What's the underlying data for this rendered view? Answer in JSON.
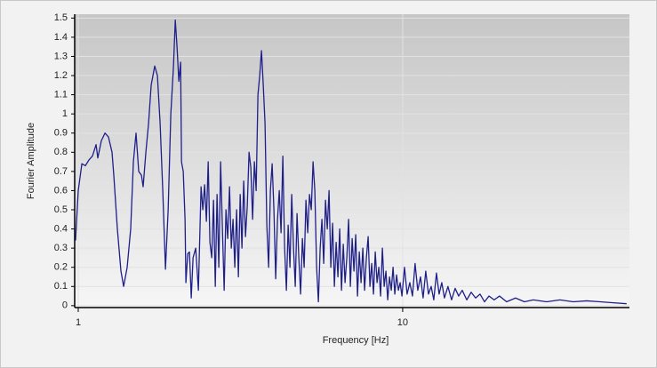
{
  "chart_data": {
    "type": "line",
    "xlabel": "Frequency [Hz]",
    "ylabel": "Fourier Amplitude",
    "color": "#1f1f8a",
    "xscale": "log",
    "grid": true,
    "xlim": [
      0.975,
      50
    ],
    "xticks": [
      1,
      10
    ],
    "ylim": [
      -0.01,
      1.52
    ],
    "yticks": [
      0,
      0.1,
      0.2,
      0.3,
      0.4,
      0.5,
      0.6,
      0.7,
      0.8,
      0.9,
      1,
      1.1,
      1.2,
      1.3,
      1.4,
      1.5
    ],
    "x": [
      0.981,
      1.0,
      1.026,
      1.052,
      1.079,
      1.106,
      1.135,
      1.149,
      1.178,
      1.209,
      1.239,
      1.271,
      1.287,
      1.32,
      1.354,
      1.38,
      1.415,
      1.451,
      1.479,
      1.507,
      1.536,
      1.566,
      1.585,
      1.616,
      1.647,
      1.678,
      1.721,
      1.754,
      1.788,
      1.822,
      1.857,
      1.893,
      1.929,
      1.966,
      1.991,
      2.016,
      2.042,
      2.068,
      2.081,
      2.107,
      2.134,
      2.147,
      2.175,
      2.202,
      2.23,
      2.259,
      2.302,
      2.346,
      2.391,
      2.421,
      2.452,
      2.483,
      2.515,
      2.546,
      2.579,
      2.612,
      2.645,
      2.678,
      2.712,
      2.747,
      2.782,
      2.817,
      2.853,
      2.889,
      2.926,
      2.963,
      3.0,
      3.038,
      3.077,
      3.116,
      3.156,
      3.196,
      3.236,
      3.277,
      3.319,
      3.361,
      3.404,
      3.447,
      3.491,
      3.535,
      3.58,
      3.625,
      3.671,
      3.718,
      3.765,
      3.813,
      3.862,
      3.911,
      3.96,
      4.01,
      4.061,
      4.113,
      4.165,
      4.218,
      4.272,
      4.326,
      4.381,
      4.436,
      4.493,
      4.55,
      4.608,
      4.666,
      4.725,
      4.785,
      4.846,
      4.908,
      4.97,
      5.033,
      5.097,
      5.162,
      5.227,
      5.294,
      5.361,
      5.429,
      5.498,
      5.568,
      5.638,
      5.71,
      5.782,
      5.856,
      5.93,
      6.005,
      6.082,
      6.159,
      6.237,
      6.316,
      6.396,
      6.478,
      6.56,
      6.643,
      6.728,
      6.813,
      6.899,
      6.987,
      7.076,
      7.166,
      7.257,
      7.349,
      7.442,
      7.537,
      7.632,
      7.729,
      7.827,
      7.927,
      8.027,
      8.129,
      8.232,
      8.337,
      8.443,
      8.55,
      8.659,
      8.769,
      8.88,
      8.993,
      9.107,
      9.222,
      9.34,
      9.458,
      9.578,
      9.7,
      9.823,
      9.948,
      10.13,
      10.32,
      10.52,
      10.72,
      10.92,
      11.13,
      11.35,
      11.56,
      11.78,
      12.01,
      12.24,
      12.47,
      12.71,
      12.95,
      13.2,
      13.45,
      13.79,
      14.15,
      14.51,
      14.88,
      15.26,
      15.76,
      16.26,
      16.78,
      17.32,
      17.88,
      18.45,
      19.14,
      19.88,
      20.91,
      22.28,
      23.73,
      25.27,
      27.78,
      30.53,
      33.57,
      36.9,
      40.57,
      44.6,
      49.0
    ],
    "values": [
      0.34,
      0.6,
      0.74,
      0.73,
      0.76,
      0.78,
      0.84,
      0.77,
      0.86,
      0.9,
      0.88,
      0.8,
      0.68,
      0.4,
      0.18,
      0.1,
      0.2,
      0.4,
      0.75,
      0.9,
      0.7,
      0.68,
      0.62,
      0.8,
      0.95,
      1.15,
      1.25,
      1.2,
      0.95,
      0.6,
      0.19,
      0.5,
      1.0,
      1.25,
      1.49,
      1.35,
      1.17,
      1.27,
      0.75,
      0.7,
      0.45,
      0.12,
      0.27,
      0.28,
      0.04,
      0.25,
      0.3,
      0.08,
      0.62,
      0.5,
      0.63,
      0.44,
      0.75,
      0.33,
      0.25,
      0.55,
      0.1,
      0.58,
      0.2,
      0.75,
      0.4,
      0.08,
      0.5,
      0.35,
      0.62,
      0.3,
      0.45,
      0.2,
      0.5,
      0.15,
      0.58,
      0.3,
      0.65,
      0.36,
      0.52,
      0.8,
      0.72,
      0.45,
      0.75,
      0.6,
      1.1,
      1.2,
      1.33,
      1.15,
      0.95,
      0.42,
      0.2,
      0.6,
      0.74,
      0.5,
      0.14,
      0.45,
      0.6,
      0.38,
      0.78,
      0.3,
      0.08,
      0.42,
      0.2,
      0.58,
      0.3,
      0.1,
      0.48,
      0.25,
      0.06,
      0.35,
      0.2,
      0.55,
      0.38,
      0.58,
      0.5,
      0.75,
      0.6,
      0.2,
      0.02,
      0.3,
      0.45,
      0.22,
      0.55,
      0.4,
      0.6,
      0.2,
      0.43,
      0.1,
      0.33,
      0.15,
      0.4,
      0.08,
      0.32,
      0.12,
      0.25,
      0.45,
      0.1,
      0.35,
      0.18,
      0.37,
      0.05,
      0.28,
      0.12,
      0.3,
      0.08,
      0.25,
      0.36,
      0.1,
      0.22,
      0.06,
      0.28,
      0.12,
      0.2,
      0.05,
      0.3,
      0.1,
      0.18,
      0.03,
      0.15,
      0.08,
      0.2,
      0.06,
      0.16,
      0.08,
      0.12,
      0.05,
      0.2,
      0.06,
      0.12,
      0.05,
      0.22,
      0.08,
      0.15,
      0.04,
      0.18,
      0.06,
      0.1,
      0.03,
      0.17,
      0.06,
      0.12,
      0.04,
      0.1,
      0.03,
      0.09,
      0.05,
      0.08,
      0.03,
      0.07,
      0.04,
      0.06,
      0.02,
      0.05,
      0.03,
      0.05,
      0.02,
      0.04,
      0.02,
      0.03,
      0.02,
      0.03,
      0.02,
      0.025,
      0.02,
      0.015,
      0.01
    ]
  }
}
